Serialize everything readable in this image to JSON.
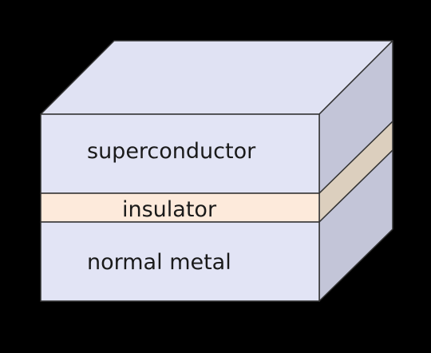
{
  "diagram": {
    "layers": [
      {
        "id": "superconductor",
        "label": "superconductor"
      },
      {
        "id": "insulator",
        "label": "insulator"
      },
      {
        "id": "normal-metal",
        "label": "normal metal"
      }
    ]
  },
  "colors": {
    "background": "#000000",
    "metal_front": "#e2e4f5",
    "metal_top": "#e0e2f3",
    "metal_side": "#c3c5d8",
    "insulator_front": "#fdeadb",
    "insulator_side": "#dccfbe",
    "outline": "#333333"
  }
}
